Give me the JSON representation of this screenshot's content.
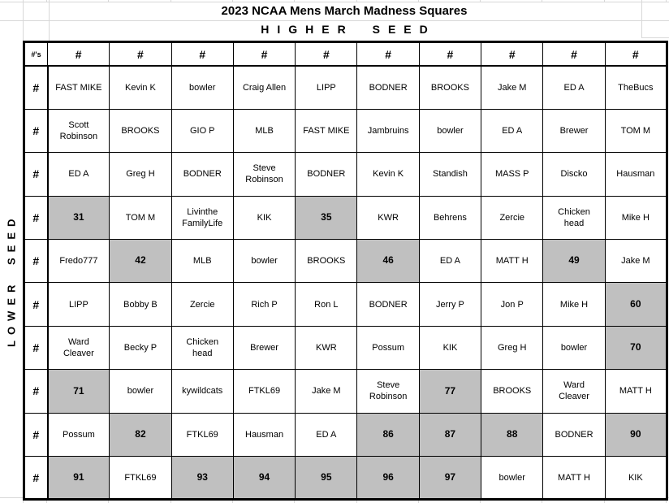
{
  "title": "2023 NCAA Mens March Madness Squares",
  "higher_seed_label": "HIGHER SEED",
  "lower_seed_label": "LOWER SEED",
  "corner_header": "#'s",
  "row_header": "#",
  "column_headers": [
    "#",
    "#",
    "#",
    "#",
    "#",
    "#",
    "#",
    "#",
    "#",
    "#"
  ],
  "colors": {
    "unsold_fill": "#c0c0c0",
    "border_black": "#000000",
    "faint_gridline": "#d8d8d8"
  },
  "grid": {
    "rows": [
      {
        "cells": [
          {
            "t": "FAST MIKE"
          },
          {
            "t": "Kevin K"
          },
          {
            "t": "bowler"
          },
          {
            "t": "Craig Allen"
          },
          {
            "t": "LIPP"
          },
          {
            "t": "BODNER"
          },
          {
            "t": "BROOKS"
          },
          {
            "t": "Jake M"
          },
          {
            "t": "ED A"
          },
          {
            "t": "TheBucs"
          }
        ]
      },
      {
        "cells": [
          {
            "t": "Scott\nRobinson"
          },
          {
            "t": "BROOKS"
          },
          {
            "t": "GIO P"
          },
          {
            "t": "MLB"
          },
          {
            "t": "FAST MIKE"
          },
          {
            "t": "Jambruins"
          },
          {
            "t": "bowler"
          },
          {
            "t": "ED A"
          },
          {
            "t": "Brewer"
          },
          {
            "t": "TOM M"
          }
        ]
      },
      {
        "cells": [
          {
            "t": "ED A"
          },
          {
            "t": "Greg H"
          },
          {
            "t": "BODNER"
          },
          {
            "t": "Steve\nRobinson"
          },
          {
            "t": "BODNER"
          },
          {
            "t": "Kevin K"
          },
          {
            "t": "Standish"
          },
          {
            "t": "MASS P"
          },
          {
            "t": "Discko"
          },
          {
            "t": "Hausman"
          }
        ]
      },
      {
        "cells": [
          {
            "t": "31",
            "g": true
          },
          {
            "t": "TOM M"
          },
          {
            "t": "Livinthe\nFamilyLife"
          },
          {
            "t": "KIK"
          },
          {
            "t": "35",
            "g": true
          },
          {
            "t": "KWR"
          },
          {
            "t": "Behrens"
          },
          {
            "t": "Zercie"
          },
          {
            "t": "Chicken\nhead"
          },
          {
            "t": "Mike H"
          }
        ]
      },
      {
        "cells": [
          {
            "t": "Fredo777"
          },
          {
            "t": "42",
            "g": true
          },
          {
            "t": "MLB"
          },
          {
            "t": "bowler"
          },
          {
            "t": "BROOKS"
          },
          {
            "t": "46",
            "g": true
          },
          {
            "t": "ED A"
          },
          {
            "t": "MATT H"
          },
          {
            "t": "49",
            "g": true
          },
          {
            "t": "Jake M"
          }
        ]
      },
      {
        "cells": [
          {
            "t": "LIPP"
          },
          {
            "t": "Bobby B"
          },
          {
            "t": "Zercie"
          },
          {
            "t": "Rich P"
          },
          {
            "t": "Ron L"
          },
          {
            "t": "BODNER"
          },
          {
            "t": "Jerry P"
          },
          {
            "t": "Jon P"
          },
          {
            "t": "Mike H"
          },
          {
            "t": "60",
            "g": true
          }
        ]
      },
      {
        "cells": [
          {
            "t": "Ward\nCleaver"
          },
          {
            "t": "Becky P"
          },
          {
            "t": "Chicken\nhead"
          },
          {
            "t": "Brewer"
          },
          {
            "t": "KWR"
          },
          {
            "t": "Possum"
          },
          {
            "t": "KIK"
          },
          {
            "t": "Greg H"
          },
          {
            "t": "bowler"
          },
          {
            "t": "70",
            "g": true
          }
        ]
      },
      {
        "cells": [
          {
            "t": "71",
            "g": true
          },
          {
            "t": "bowler"
          },
          {
            "t": "kywildcats"
          },
          {
            "t": "FTKL69"
          },
          {
            "t": "Jake M"
          },
          {
            "t": "Steve\nRobinson"
          },
          {
            "t": "77",
            "g": true
          },
          {
            "t": "BROOKS"
          },
          {
            "t": "Ward\nCleaver"
          },
          {
            "t": "MATT H"
          }
        ]
      },
      {
        "cells": [
          {
            "t": "Possum"
          },
          {
            "t": "82",
            "g": true
          },
          {
            "t": "FTKL69"
          },
          {
            "t": "Hausman"
          },
          {
            "t": "ED A"
          },
          {
            "t": "86",
            "g": true
          },
          {
            "t": "87",
            "g": true
          },
          {
            "t": "88",
            "g": true
          },
          {
            "t": "BODNER"
          },
          {
            "t": "90",
            "g": true
          }
        ]
      },
      {
        "cells": [
          {
            "t": "91",
            "g": true
          },
          {
            "t": "FTKL69"
          },
          {
            "t": "93",
            "g": true
          },
          {
            "t": "94",
            "g": true
          },
          {
            "t": "95",
            "g": true
          },
          {
            "t": "96",
            "g": true
          },
          {
            "t": "97",
            "g": true
          },
          {
            "t": "bowler"
          },
          {
            "t": "MATT H"
          },
          {
            "t": "KIK"
          }
        ]
      }
    ]
  }
}
